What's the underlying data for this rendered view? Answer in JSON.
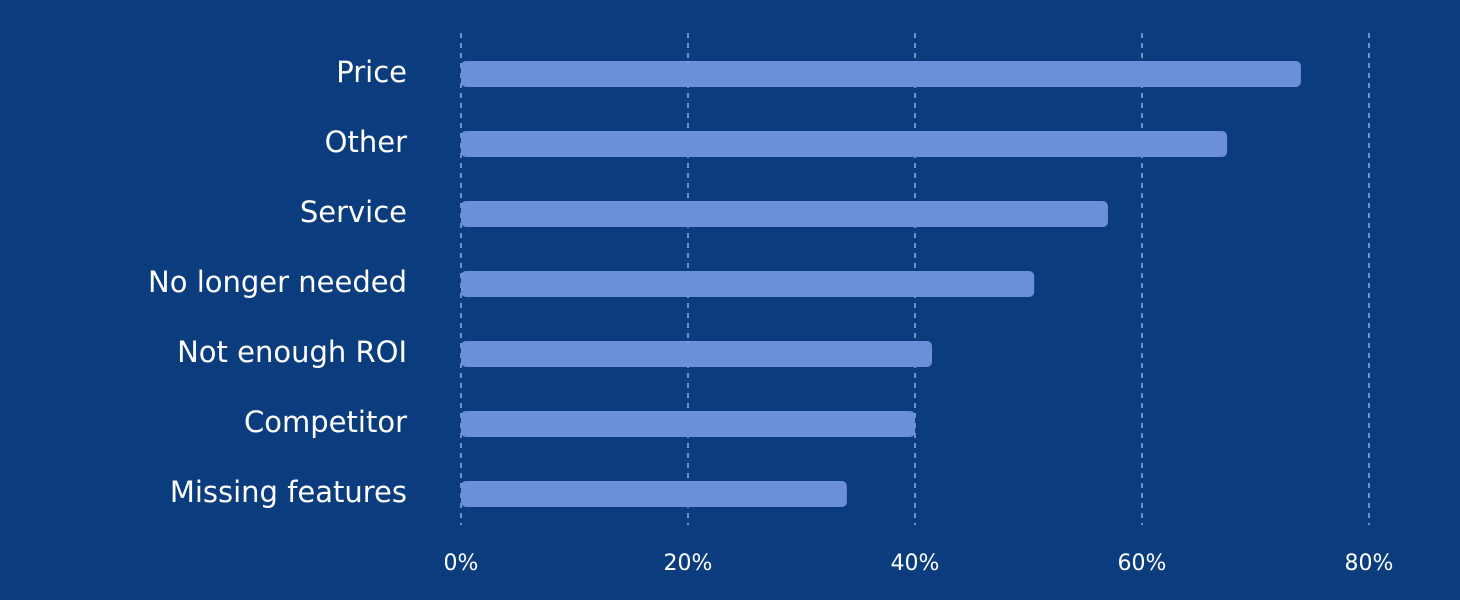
{
  "chart_data": {
    "type": "bar",
    "orientation": "horizontal",
    "categories": [
      "Price",
      "Other",
      "Service",
      "No longer needed",
      "Not enough ROI",
      "Competitor",
      "Missing features"
    ],
    "values": [
      74,
      67.5,
      57,
      50.5,
      41.5,
      40,
      34
    ],
    "color": "#6b8fd8",
    "xlim": [
      0,
      80
    ],
    "xticks": [
      {
        "value": 0,
        "label": "0%"
      },
      {
        "value": 20,
        "label": "20%"
      },
      {
        "value": 40,
        "label": "40%"
      },
      {
        "value": 60,
        "label": "60%"
      },
      {
        "value": 80,
        "label": "80%"
      }
    ],
    "grid": true
  }
}
